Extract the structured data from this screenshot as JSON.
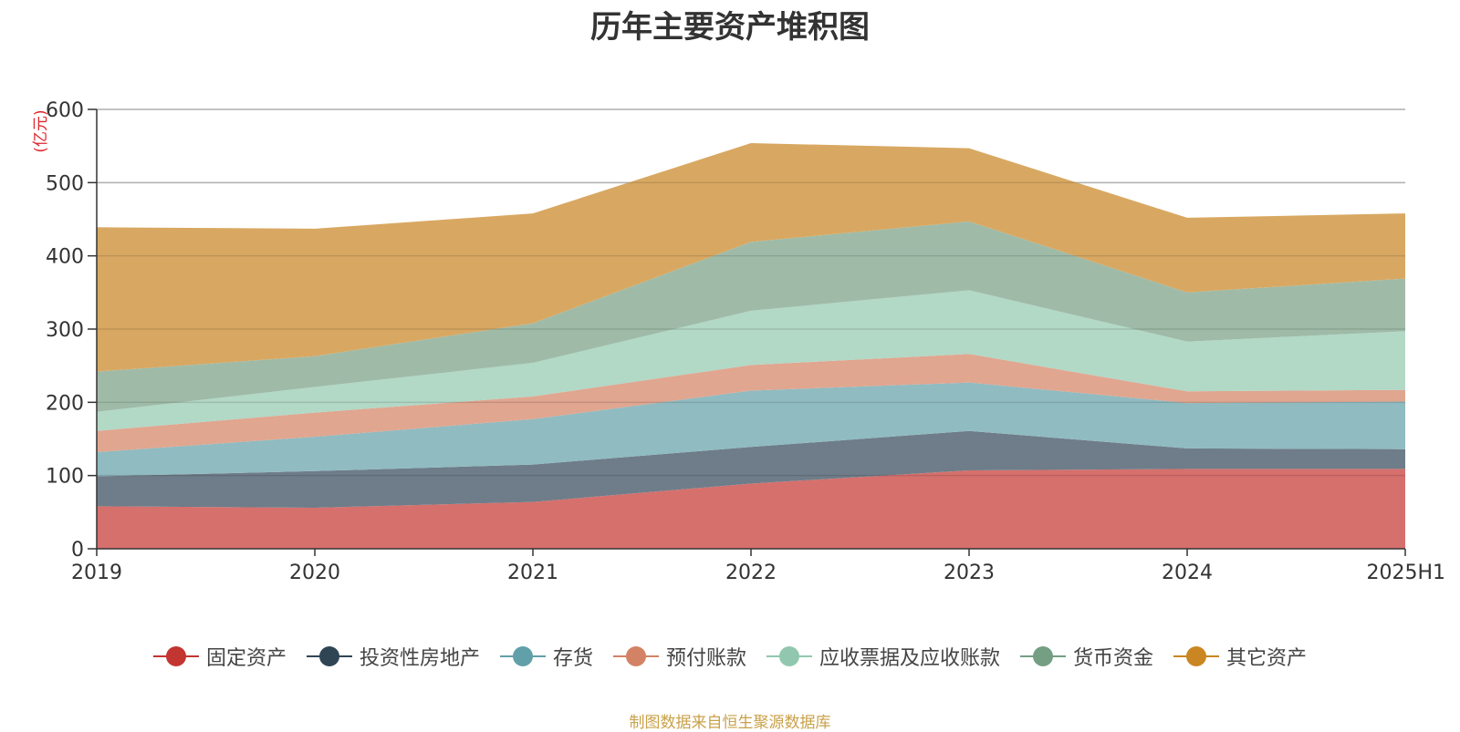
{
  "colors": {
    "axis": "#333333",
    "grid": "#c8c8c8",
    "unit": "#e0242c",
    "source": "#c9a24a"
  },
  "chart_data": {
    "type": "area",
    "stacked": true,
    "title": "历年主要资产堆积图",
    "ylabel": "(亿元)",
    "xlabel": "",
    "ylim": [
      0,
      600
    ],
    "yticks": [
      0,
      100,
      200,
      300,
      400,
      500,
      600
    ],
    "grid": true,
    "legend_position": "bottom",
    "categories": [
      "2019",
      "2020",
      "2021",
      "2022",
      "2023",
      "2024",
      "2025H1"
    ],
    "series": [
      {
        "name": "固定资产",
        "color": "#c23531",
        "area_color": "#d5706d",
        "values": [
          58,
          56,
          64,
          89,
          107,
          109,
          109
        ]
      },
      {
        "name": "投资性房地产",
        "color": "#2f4554",
        "area_color": "#6e7d89",
        "values": [
          41,
          50,
          51,
          50,
          54,
          28,
          27
        ]
      },
      {
        "name": "存货",
        "color": "#61a0a8",
        "area_color": "#90bbc1",
        "values": [
          33,
          47,
          62,
          77,
          66,
          62,
          65
        ]
      },
      {
        "name": "预付账款",
        "color": "#d48265",
        "area_color": "#e0a690",
        "values": [
          29,
          33,
          31,
          35,
          39,
          16,
          16
        ]
      },
      {
        "name": "应收票据及应收账款",
        "color": "#91c7ae",
        "area_color": "#b2d8c6",
        "values": [
          26,
          35,
          46,
          74,
          87,
          68,
          80
        ]
      },
      {
        "name": "货币资金",
        "color": "#749f83",
        "area_color": "#9fbba8",
        "values": [
          55,
          42,
          54,
          94,
          94,
          67,
          72
        ]
      },
      {
        "name": "其它资产",
        "color": "#ca8622",
        "area_color": "#d8a862",
        "values": [
          197,
          174,
          150,
          135,
          100,
          102,
          89
        ]
      }
    ]
  },
  "source_note": "制图数据来自恒生聚源数据库"
}
